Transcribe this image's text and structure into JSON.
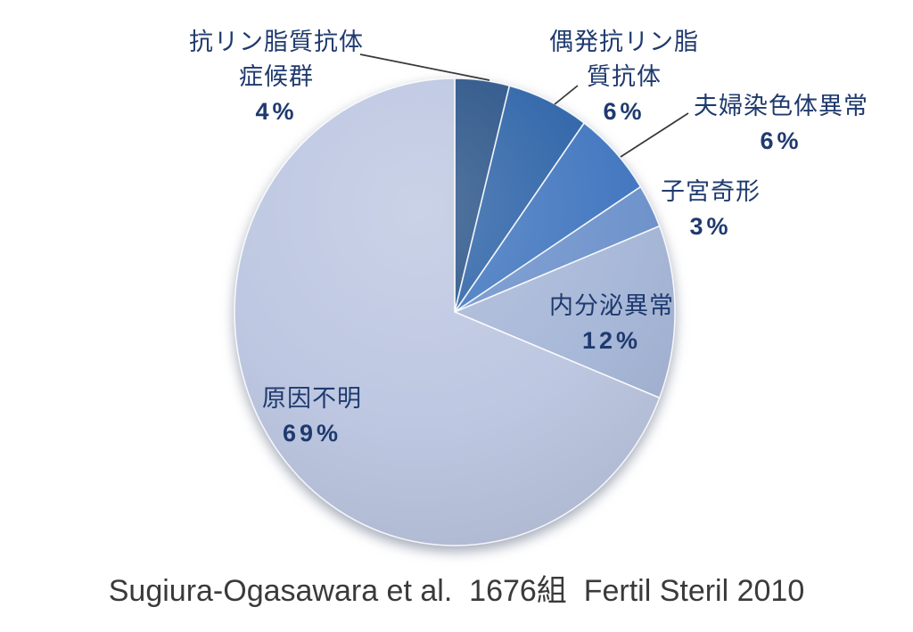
{
  "chart_data": {
    "type": "pie",
    "total": 100,
    "start_angle_deg": 0,
    "direction": "clockwise",
    "slices": [
      {
        "label": "抗リン脂質抗体症候群",
        "label_lines": [
          "抗リン脂質抗体",
          "症候群"
        ],
        "value": 4,
        "pct": "4%",
        "color": "#2A5488"
      },
      {
        "label": "偶発抗リン脂質抗体",
        "label_lines": [
          "偶発抗リン脂",
          "質抗体"
        ],
        "value": 6,
        "pct": "6%",
        "color": "#2E64A8"
      },
      {
        "label": "夫婦染色体異常",
        "label_lines": [
          "夫婦染色体異常"
        ],
        "value": 6,
        "pct": "6%",
        "color": "#4478C0"
      },
      {
        "label": "子宮奇形",
        "label_lines": [
          "子宮奇形"
        ],
        "value": 3,
        "pct": "3%",
        "color": "#7094CC"
      },
      {
        "label": "内分泌異常",
        "label_lines": [
          "内分泌異常"
        ],
        "value": 12,
        "pct": "12%",
        "color": "#A8B8D8"
      },
      {
        "label": "原因不明",
        "label_lines": [
          "原因不明"
        ],
        "value": 69,
        "pct": "69%",
        "color": "#BDC7E1"
      }
    ],
    "legend": "none",
    "label_style": "outside-for-small-slices, inside-for-large-slices"
  },
  "caption": "Sugiura-Ogasawara et al.  1676組  Fertil Steril 2010",
  "colors": {
    "background": "#FFFFFF",
    "label_text": "#1F3A6E",
    "leader_line": "#383838",
    "caption_text": "#3A3A3A"
  }
}
